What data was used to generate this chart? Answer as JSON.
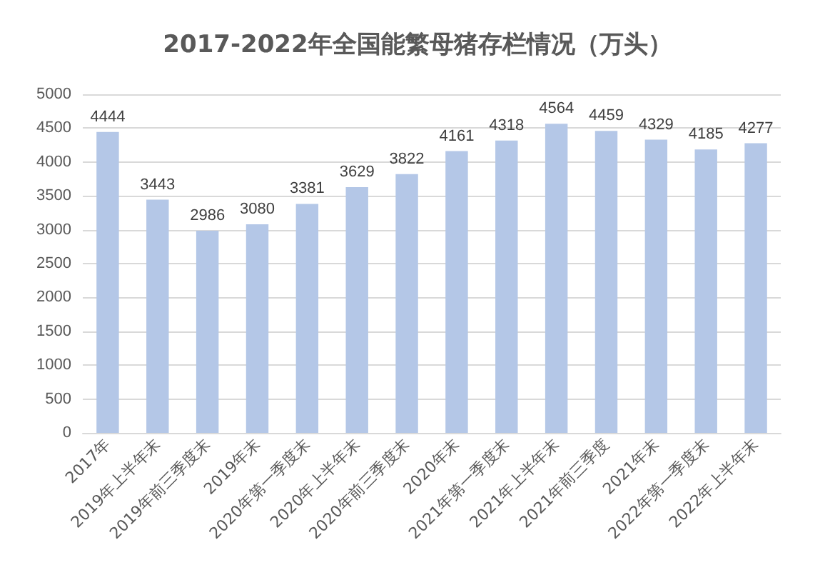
{
  "chart_data": {
    "type": "bar",
    "title": "2017-2022年全国能繁母猪存栏情况（万头）",
    "categories": [
      "2017年",
      "2019年上半年末",
      "2019年前三季度末",
      "2019年末",
      "2020年第一季度末",
      "2020年上半年末",
      "2020年前三季度末",
      "2020年末",
      "2021年第一季度末",
      "2021年上半年末",
      "2021年前三季度",
      "2021年末",
      "2022年第一季度末",
      "2022年上半年末"
    ],
    "values": [
      4444,
      3443,
      2986,
      3080,
      3381,
      3629,
      3822,
      4161,
      4318,
      4564,
      4459,
      4329,
      4185,
      4277
    ],
    "color": "#b4c7e7",
    "ylim": [
      0,
      5000
    ],
    "yticks": [
      0,
      500,
      1000,
      1500,
      2000,
      2500,
      3000,
      3500,
      4000,
      4500,
      5000
    ],
    "grid": "y",
    "data_labels": true
  }
}
